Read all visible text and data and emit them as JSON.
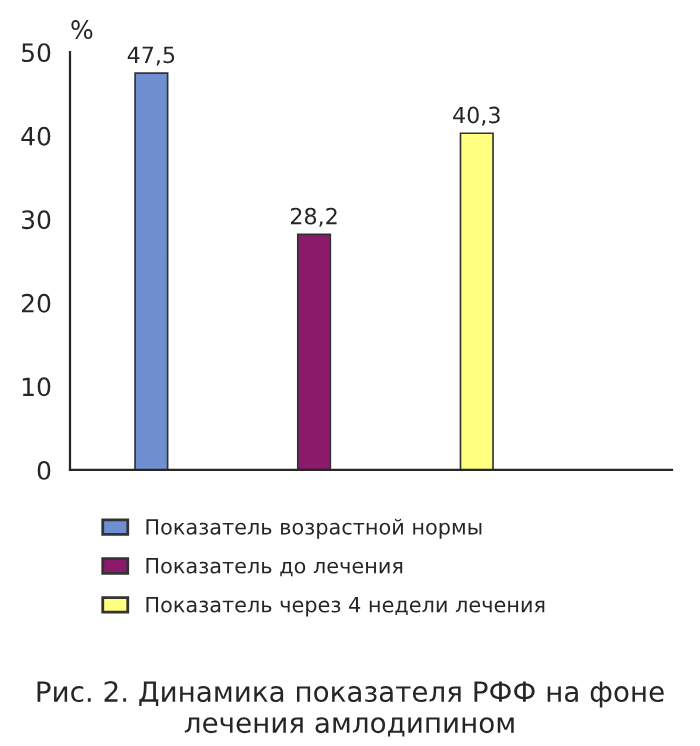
{
  "chart_data": {
    "type": "bar",
    "title": "Рис. 2. Динамика показателя РФФ на фоне лечения амлодипином",
    "ylabel": "%",
    "categories": [
      null,
      null,
      null
    ],
    "series": [
      {
        "name": "Показатель возрастной нормы",
        "color": "#6f8fd0",
        "values": [
          47.5,
          null,
          null
        ],
        "value_labels": [
          "47,5",
          null,
          null
        ]
      },
      {
        "name": "Показатель до лечения",
        "color": "#8b1a6b",
        "values": [
          null,
          28.2,
          null
        ],
        "value_labels": [
          null,
          "28,2",
          null
        ]
      },
      {
        "name": "Показатель через 4 недели лечения",
        "color": "#ffff80",
        "values": [
          null,
          null,
          40.3
        ],
        "value_labels": [
          null,
          null,
          "40,3"
        ]
      }
    ],
    "ylim": [
      0,
      50
    ],
    "yticks": [
      0,
      10,
      20,
      30,
      40,
      50
    ],
    "legend": "bottom",
    "grid": false
  }
}
